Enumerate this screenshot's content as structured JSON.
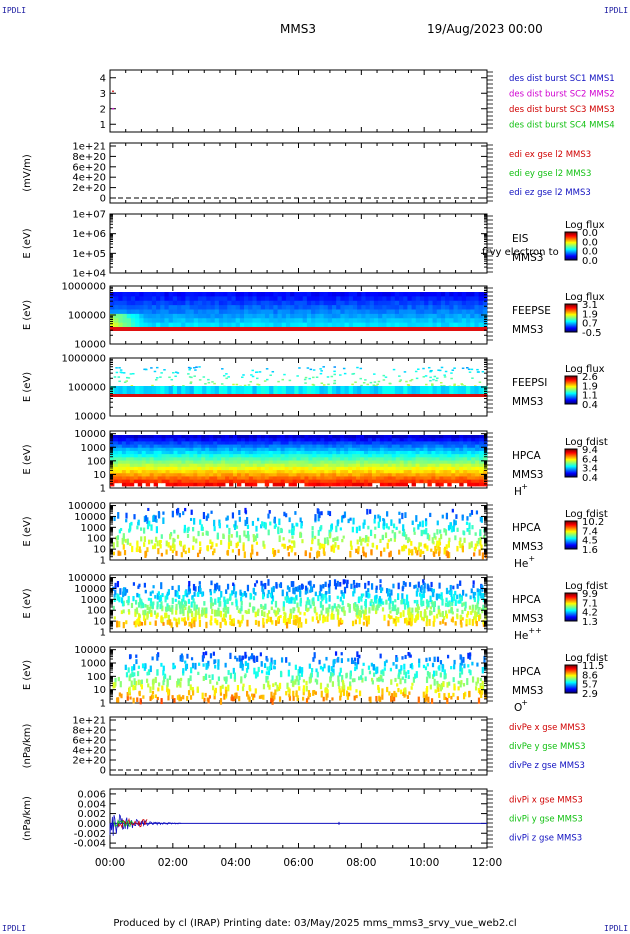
{
  "corners": {
    "tl": "IPDLI",
    "tr": "IPDLI",
    "bl": "IPDLI",
    "br": "IPDLI"
  },
  "header": {
    "spacecraft": "MMS3",
    "datetime": "19/Aug/2023 00:00"
  },
  "footer": {
    "text": "Produced by cl (IRAP)   Printing date: 03/May/2025   mms_mms3_srvy_vue_web2.cl"
  },
  "chart_data": [
    {
      "type": "scatter",
      "id": "burst",
      "ylim": [
        0.5,
        4.5
      ],
      "yticks": [
        "1",
        "2",
        "3",
        "4"
      ],
      "legend": [
        {
          "text": "des dist burst SC1 MMS1",
          "color": "#1010c0"
        },
        {
          "text": "des dist burst SC2 MMS2",
          "color": "#d000d0"
        },
        {
          "text": "des dist burst SC3 MMS3",
          "color": "#d00000"
        },
        {
          "text": "des dist burst SC4 MMS4",
          "color": "#10c010"
        }
      ]
    },
    {
      "type": "line",
      "id": "edi",
      "ylabel": "(mV/m)",
      "yticks": [
        "0",
        "2e+20",
        "4e+20",
        "6e+20",
        "8e+20",
        "1e+21"
      ],
      "legend": [
        {
          "text": "edi ex gse l2 MMS3",
          "color": "#d00000"
        },
        {
          "text": "edi ey gse l2 MMS3",
          "color": "#10c010"
        },
        {
          "text": "edi ez gse l2 MMS3",
          "color": "#1010c0"
        }
      ]
    },
    {
      "type": "heatmap",
      "id": "eis",
      "ylabel": "E (eV)",
      "yscale": "log",
      "yticks": [
        "1e+04",
        "1e+05",
        "1e+06",
        "1e+07"
      ],
      "instrument": "EIS",
      "subtitle": "MMS3",
      "note": "frvy electron to",
      "cbar_title": "Log flux",
      "cbar_ticks": [
        "0.0",
        "0.0",
        "0.0",
        "0.0"
      ]
    },
    {
      "type": "heatmap",
      "id": "feepse",
      "ylabel": "E (eV)",
      "yscale": "log",
      "yticks": [
        "10000",
        "100000",
        "1000000"
      ],
      "instrument": "FEEPSE",
      "subtitle": "MMS3",
      "cbar_title": "Log flux",
      "cbar_ticks": [
        "3.1",
        "1.9",
        "0.7",
        "-0.5"
      ]
    },
    {
      "type": "heatmap",
      "id": "feepsi",
      "ylabel": "E (eV)",
      "yscale": "log",
      "yticks": [
        "10000",
        "100000",
        "1000000"
      ],
      "instrument": "FEEPSI",
      "subtitle": "MMS3",
      "cbar_title": "Log flux",
      "cbar_ticks": [
        "2.6",
        "1.9",
        "1.1",
        "0.4"
      ]
    },
    {
      "type": "heatmap",
      "id": "hpca-h",
      "ylabel": "E (eV)",
      "yscale": "log",
      "yticks": [
        "1",
        "10",
        "100",
        "1000",
        "10000"
      ],
      "instrument": "HPCA",
      "subtitle": "MMS3",
      "species": "H",
      "charge": "+",
      "cbar_title": "Log fdist",
      "cbar_ticks": [
        "9.4",
        "6.4",
        "3.4",
        "0.4"
      ]
    },
    {
      "type": "heatmap",
      "id": "hpca-he1",
      "ylabel": "E (eV)",
      "yscale": "log",
      "yticks": [
        "1",
        "10",
        "100",
        "1000",
        "10000",
        "100000"
      ],
      "instrument": "HPCA",
      "subtitle": "MMS3",
      "species": "He",
      "charge": "+",
      "cbar_title": "Log fdist",
      "cbar_ticks": [
        "10.2",
        "7.4",
        "4.5",
        "1.6"
      ]
    },
    {
      "type": "heatmap",
      "id": "hpca-he2",
      "ylabel": "E (eV)",
      "yscale": "log",
      "yticks": [
        "1",
        "10",
        "100",
        "1000",
        "10000",
        "100000"
      ],
      "instrument": "HPCA",
      "subtitle": "MMS3",
      "species": "He",
      "charge": "++",
      "cbar_title": "Log fdist",
      "cbar_ticks": [
        "9.9",
        "7.1",
        "4.2",
        "1.3"
      ]
    },
    {
      "type": "heatmap",
      "id": "hpca-o",
      "ylabel": "E (eV)",
      "yscale": "log",
      "yticks": [
        "1",
        "10",
        "100",
        "1000",
        "10000"
      ],
      "instrument": "HPCA",
      "subtitle": "MMS3",
      "species": "O",
      "charge": "+",
      "cbar_title": "Log fdist",
      "cbar_ticks": [
        "11.5",
        "8.6",
        "5.7",
        "2.9"
      ]
    },
    {
      "type": "line",
      "id": "divpe",
      "ylabel": "(nPa/km)",
      "yticks": [
        "0",
        "2e+20",
        "4e+20",
        "6e+20",
        "8e+20",
        "1e+21"
      ],
      "legend": [
        {
          "text": "divPe x gse MMS3",
          "color": "#d00000"
        },
        {
          "text": "divPe y gse MMS3",
          "color": "#10c010"
        },
        {
          "text": "divPe z gse MMS3",
          "color": "#1010c0"
        }
      ]
    },
    {
      "type": "line",
      "id": "divpi",
      "ylabel": "(nPa/km)",
      "ylim": [
        -0.005,
        0.007
      ],
      "yticks": [
        "-0.004",
        "-0.002",
        "0.000",
        "0.002",
        "0.004",
        "0.006"
      ],
      "legend": [
        {
          "text": "divPi x gse MMS3",
          "color": "#d00000"
        },
        {
          "text": "divPi y gse MMS3",
          "color": "#10c010"
        },
        {
          "text": "divPi z gse MMS3",
          "color": "#1010c0"
        }
      ]
    }
  ],
  "xaxis": {
    "ticks": [
      "00:00",
      "02:00",
      "04:00",
      "06:00",
      "08:00",
      "10:00",
      "12:00"
    ],
    "xlim_hours": [
      0,
      12
    ]
  }
}
